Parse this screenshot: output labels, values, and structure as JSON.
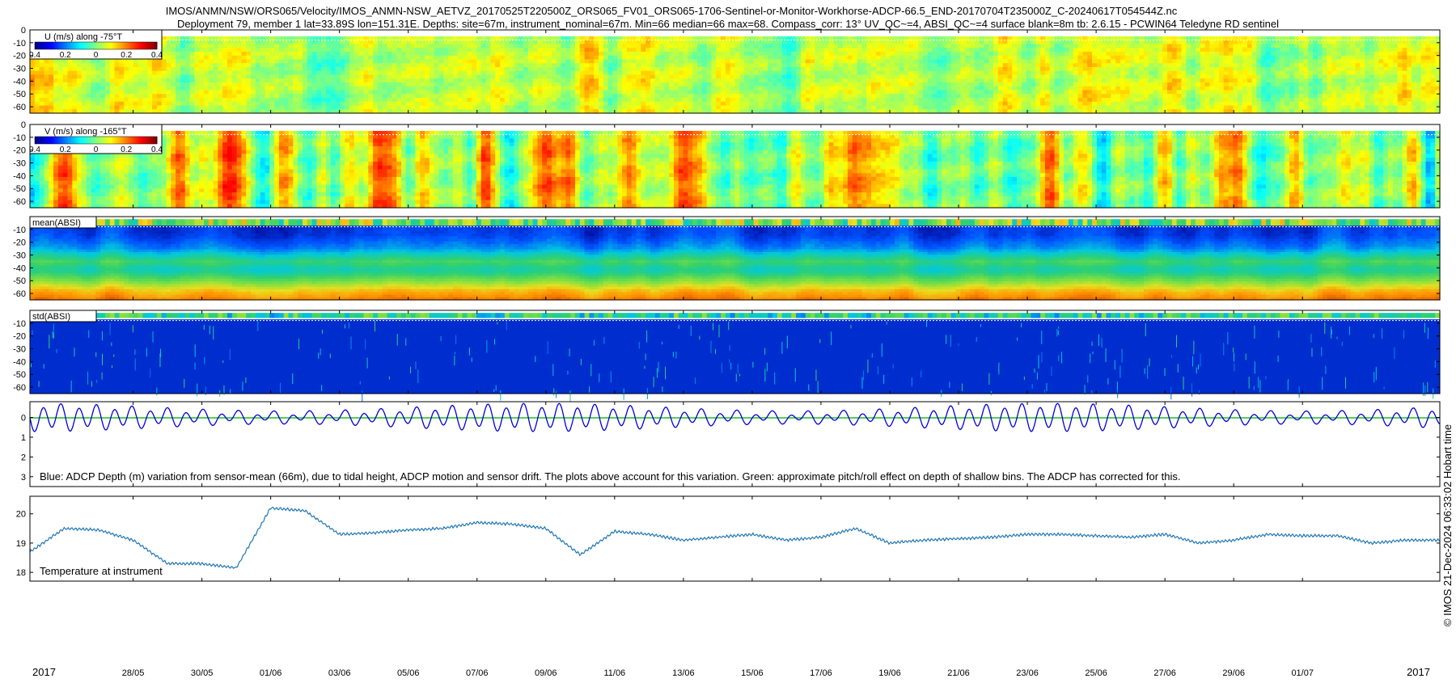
{
  "header": {
    "line1": "IMOS/ANMN/NSW/ORS065/Velocity/IMOS_ANMN-NSW_AETVZ_20170525T220500Z_ORS065_FV01_ORS065-1706-Sentinel-or-Monitor-Workhorse-ADCP-66.5_END-20170704T235000Z_C-20240617T054544Z.nc",
    "line2": "Deployment 79, member 1 lat=33.89S lon=151.31E. Depths: site=67m, instrument_nominal=67m. Min=66 median=66 max=68. Compass_corr: 13° UV_QC~=4, ABSI_QC~=4 surface blank=8m tb: 2.6.15 - PCWIN64 Teledyne RD sentinel"
  },
  "copyright": "© IMOS 21-Dec-2024 06:33:02 Hobart time",
  "colors": {
    "jet": [
      "#00008f",
      "#0000ff",
      "#0080ff",
      "#00ffff",
      "#80ff80",
      "#ffff00",
      "#ff8000",
      "#ff0000",
      "#800000"
    ],
    "parula_like": [
      "#00008f",
      "#0050ff",
      "#00c8e0",
      "#30d070",
      "#80e040",
      "#e8e020",
      "#ff9000",
      "#d04000"
    ],
    "depth_line": "#0000dd",
    "pitch_line": "#22bb22",
    "temp_line": "#1f77b4"
  },
  "chart_data": [
    {
      "type": "heatmap",
      "legend": "U (m/s) along -75°T",
      "colorbar_ticks": [
        "0.4",
        "0.2",
        "0",
        "0.2",
        "0.4"
      ],
      "clim": [
        -0.4,
        0.4
      ],
      "yticks": [
        0,
        -10,
        -20,
        -30,
        -40,
        -50,
        -60
      ],
      "ylim": [
        -65,
        0
      ],
      "field_mean": 0.05,
      "field_amplitude": 0.15
    },
    {
      "type": "heatmap",
      "legend": "V (m/s) along -165°T",
      "colorbar_ticks": [
        "0.4",
        "0.2",
        "0",
        "0.2",
        "0.4"
      ],
      "clim": [
        -0.4,
        0.4
      ],
      "yticks": [
        0,
        -10,
        -20,
        -30,
        -40,
        -50,
        -60
      ],
      "ylim": [
        -65,
        0
      ],
      "field_mean": 0.08,
      "field_amplitude": 0.3
    },
    {
      "type": "heatmap",
      "legend": "mean(ABSI)",
      "yticks": [
        -10,
        -20,
        -30,
        -40,
        -50,
        -60
      ],
      "ylim": [
        -65,
        0
      ],
      "depth_profile": [
        {
          "depth": -8,
          "value": 0.1
        },
        {
          "depth": -15,
          "value": 0.12
        },
        {
          "depth": -25,
          "value": 0.22
        },
        {
          "depth": -35,
          "value": 0.45
        },
        {
          "depth": -42,
          "value": 0.35
        },
        {
          "depth": -50,
          "value": 0.55
        },
        {
          "depth": -58,
          "value": 0.78
        },
        {
          "depth": -64,
          "value": 0.88
        }
      ]
    },
    {
      "type": "heatmap",
      "legend": "std(ABSI)",
      "yticks": [
        -10,
        -20,
        -30,
        -40,
        -50,
        -60
      ],
      "ylim": [
        -65,
        0
      ],
      "background_value": 0.08
    },
    {
      "type": "line",
      "annotation": "Blue: ADCP Depth (m) variation from sensor-mean (66m), due to tidal height, ADCP motion and sensor drift. The plots above account for this variation. Green: approximate pitch/roll effect on depth of shallow bins. The ADCP has corrected for this.",
      "yticks": [
        "0",
        "1",
        "2",
        "3"
      ],
      "ylim": [
        -0.8,
        3.5
      ],
      "y_reversed": true,
      "series": [
        {
          "kind": "tidal",
          "mean": 0,
          "amplitude": 0.55,
          "period_days": 0.5175
        },
        {
          "kind": "flat",
          "value": 0.02
        }
      ]
    },
    {
      "type": "line",
      "annotation": "Temperature at instrument",
      "yticks": [
        "18",
        "19",
        "20"
      ],
      "ylim": [
        17.7,
        20.6
      ],
      "series": [
        {
          "x": [
            "2017-05-25",
            "2017-05-26",
            "2017-05-27",
            "2017-05-28",
            "2017-05-29",
            "2017-05-30",
            "2017-05-31",
            "2017-06-01",
            "2017-06-02",
            "2017-06-03",
            "2017-06-04",
            "2017-06-05",
            "2017-06-06",
            "2017-06-07",
            "2017-06-08",
            "2017-06-09",
            "2017-06-10",
            "2017-06-11",
            "2017-06-12",
            "2017-06-13",
            "2017-06-14",
            "2017-06-15",
            "2017-06-16",
            "2017-06-17",
            "2017-06-18",
            "2017-06-19",
            "2017-06-20",
            "2017-06-21",
            "2017-06-22",
            "2017-06-23",
            "2017-06-24",
            "2017-06-25",
            "2017-06-26",
            "2017-06-27",
            "2017-06-28",
            "2017-06-29",
            "2017-06-30",
            "2017-07-01",
            "2017-07-02",
            "2017-07-03",
            "2017-07-04"
          ],
          "y": [
            18.7,
            19.5,
            19.45,
            19.1,
            18.3,
            18.3,
            18.15,
            20.2,
            20.1,
            19.3,
            19.35,
            19.45,
            19.5,
            19.7,
            19.65,
            19.5,
            18.6,
            19.4,
            19.3,
            19.1,
            19.2,
            19.3,
            19.1,
            19.2,
            19.5,
            19.0,
            19.1,
            19.15,
            19.2,
            19.3,
            19.3,
            19.25,
            19.2,
            19.3,
            19.0,
            19.1,
            19.3,
            19.25,
            19.25,
            19.0,
            19.1
          ]
        }
      ]
    }
  ],
  "xaxis": {
    "domain": [
      "2017-05-25",
      "2017-07-04"
    ],
    "ticks": [
      {
        "date": "2017-05-28",
        "label": "28/05"
      },
      {
        "date": "2017-05-30",
        "label": "30/05"
      },
      {
        "date": "2017-06-01",
        "label": "01/06"
      },
      {
        "date": "2017-06-03",
        "label": "03/06"
      },
      {
        "date": "2017-06-05",
        "label": "05/06"
      },
      {
        "date": "2017-06-07",
        "label": "07/06"
      },
      {
        "date": "2017-06-09",
        "label": "09/06"
      },
      {
        "date": "2017-06-11",
        "label": "11/06"
      },
      {
        "date": "2017-06-13",
        "label": "13/06"
      },
      {
        "date": "2017-06-15",
        "label": "15/06"
      },
      {
        "date": "2017-06-17",
        "label": "17/06"
      },
      {
        "date": "2017-06-19",
        "label": "19/06"
      },
      {
        "date": "2017-06-21",
        "label": "21/06"
      },
      {
        "date": "2017-06-23",
        "label": "23/06"
      },
      {
        "date": "2017-06-25",
        "label": "25/06"
      },
      {
        "date": "2017-06-27",
        "label": "27/06"
      },
      {
        "date": "2017-06-29",
        "label": "29/06"
      },
      {
        "date": "2017-07-01",
        "label": "01/07"
      }
    ],
    "year_left": "2017",
    "year_right": "2017"
  }
}
